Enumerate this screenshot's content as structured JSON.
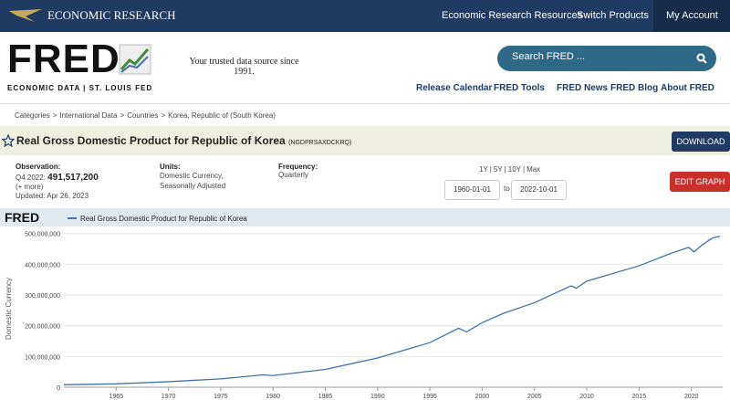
{
  "nav": {
    "brand": "ECONOMIC RESEARCH",
    "links": [
      "Economic Research Resources",
      "Switch Products",
      "My Account"
    ]
  },
  "header": {
    "logo": "FRED",
    "logo_sub": "ECONOMIC DATA | ST. LOUIS FED",
    "tagline": "Your trusted data source since 1991.",
    "search_placeholder": "Search FRED ...",
    "links": [
      "Release Calendar",
      "FRED Tools",
      "FRED News",
      "FRED Blog",
      "About FRED"
    ]
  },
  "breadcrumb": {
    "items": [
      "Categories",
      "International Data",
      "Countries",
      "Korea, Republic of (South Korea)"
    ],
    "separator": ">"
  },
  "series_header": {
    "title": "Real Gross Domestic Product for Republic of Korea",
    "id": "(NGDPRSAXDCKRQ)",
    "download": "DOWNLOAD"
  },
  "observation": {
    "label": "Observation:",
    "period": "Q4 2022:",
    "value": "491,517,200",
    "more": "(+ more)",
    "updated": "Updated: Apr 26, 2023"
  },
  "units": {
    "label": "Units:",
    "text": "Domestic Currency, Seasonally Adjusted"
  },
  "frequency": {
    "label": "Frequency:",
    "text": "Quarterly"
  },
  "range": {
    "presets": [
      "1Y",
      "5Y",
      "10Y",
      "Max"
    ],
    "separator": "|",
    "start": "1960-01-01",
    "to": "to",
    "end": "2022-10-01"
  },
  "edit_graph": "EDIT GRAPH",
  "chart_data": {
    "type": "line",
    "logo": "FRED",
    "ylabel": "Domestic Currency",
    "x": [
      1960,
      1965,
      1970,
      1975,
      1979,
      1980,
      1985,
      1990,
      1995,
      1997.75,
      1998.5,
      2000,
      2002,
      2005,
      2008.5,
      2009,
      2010,
      2012,
      2015,
      2018,
      2019.75,
      2020.25,
      2021,
      2022,
      2022.75
    ],
    "series": [
      {
        "name": "Real Gross Domestic Product for Republic of Korea",
        "color": "#4572a7",
        "values": [
          8000000,
          11000000,
          18000000,
          27000000,
          40000000,
          38000000,
          58000000,
          95000000,
          145000000,
          192000000,
          180000000,
          210000000,
          240000000,
          275000000,
          330000000,
          322000000,
          345000000,
          365000000,
          395000000,
          435000000,
          455000000,
          440000000,
          462000000,
          485000000,
          491517200
        ]
      }
    ],
    "xlim": [
      1960,
      2023
    ],
    "xticks": [
      1965,
      1970,
      1975,
      1980,
      1985,
      1990,
      1995,
      2000,
      2005,
      2010,
      2015,
      2020
    ],
    "ylim": [
      0,
      520000000
    ],
    "yticks": [
      0,
      {
        "value": 100000000,
        "label": "100,000,000"
      },
      {
        "value": 200000000,
        "label": "200,000,000"
      },
      {
        "value": 300000000,
        "label": "300,000,000"
      },
      {
        "value": 400000000,
        "label": "400,000,000"
      },
      {
        "value": 500000000,
        "label": "500,000,000"
      }
    ],
    "grid": true
  }
}
